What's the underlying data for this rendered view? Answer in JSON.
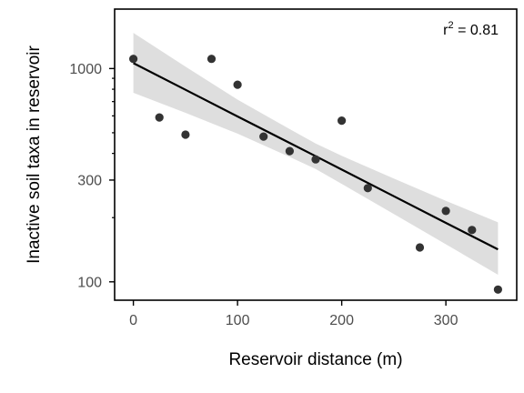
{
  "chart_data": {
    "type": "scatter",
    "title": "",
    "xlabel": "Reservoir distance (m)",
    "ylabel": "Inactive soil taxa in reservoir",
    "x_scale": "linear",
    "y_scale": "log",
    "xlim": [
      -18,
      368
    ],
    "ylim": [
      82,
      1900
    ],
    "x_ticks": [
      0,
      100,
      200,
      300
    ],
    "x_tick_labels": [
      "0",
      "100",
      "200",
      "300"
    ],
    "y_ticks": [
      100,
      300,
      1000
    ],
    "y_tick_labels": [
      "100",
      "300",
      "1000"
    ],
    "y_minor_ticks": [
      200,
      400,
      500,
      600,
      700,
      800,
      900
    ],
    "grid": false,
    "series": [
      {
        "x": [
          0,
          25,
          50,
          75,
          100,
          125,
          150,
          175,
          200,
          225,
          275,
          300,
          325,
          350
        ],
        "y": [
          1110,
          590,
          490,
          1110,
          840,
          480,
          410,
          375,
          570,
          275,
          145,
          215,
          175,
          92
        ]
      }
    ],
    "fit": {
      "type": "linear (log y)",
      "x": [
        0,
        50,
        100,
        150,
        175,
        200,
        250,
        300,
        350
      ],
      "y": [
        1060,
        795,
        596,
        448,
        388,
        336,
        252,
        189,
        142
      ],
      "ci_lower": [
        770,
        620,
        495,
        385,
        338,
        288,
        208,
        150,
        108
      ],
      "ci_upper": [
        1470,
        1020,
        715,
        520,
        445,
        390,
        305,
        240,
        190
      ]
    },
    "annotation": {
      "prefix": "r",
      "superscript": "2",
      "suffix": " = 0.81"
    },
    "colors": {
      "points": "#333333",
      "fit_line": "#000000",
      "ci_band": "#dedede",
      "axes": "#000000",
      "tick_labels": "#4d4d4d"
    }
  }
}
